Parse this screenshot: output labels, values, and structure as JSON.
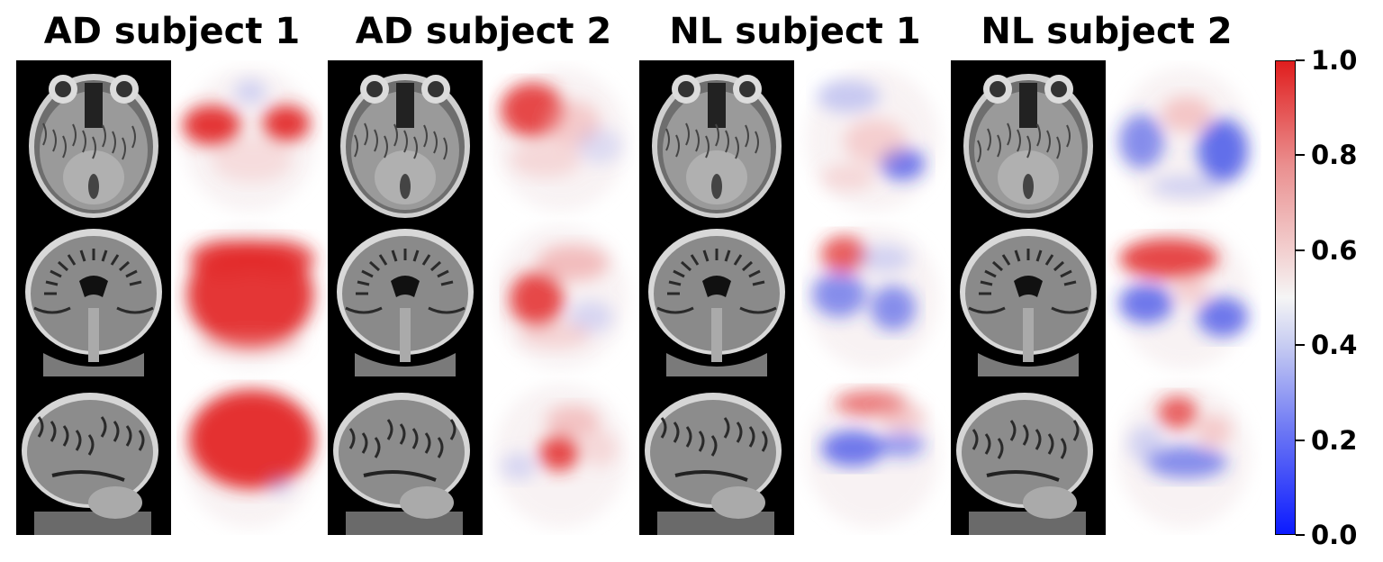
{
  "titles": [
    "AD subject 1",
    "AD subject 2",
    "NL subject 1",
    "NL subject 2"
  ],
  "colorbar": {
    "ticks": [
      "1.0",
      "0.8",
      "0.6",
      "0.4",
      "0.2",
      "0.0"
    ],
    "colors": {
      "max": "#e01e1e",
      "mid": "#f5f5f5",
      "min": "#0b1aff"
    }
  },
  "panels": {
    "views": [
      "axial",
      "coronal",
      "sagittal"
    ],
    "subjects": [
      "AD subject 1",
      "AD subject 2",
      "NL subject 1",
      "NL subject 2"
    ]
  }
}
